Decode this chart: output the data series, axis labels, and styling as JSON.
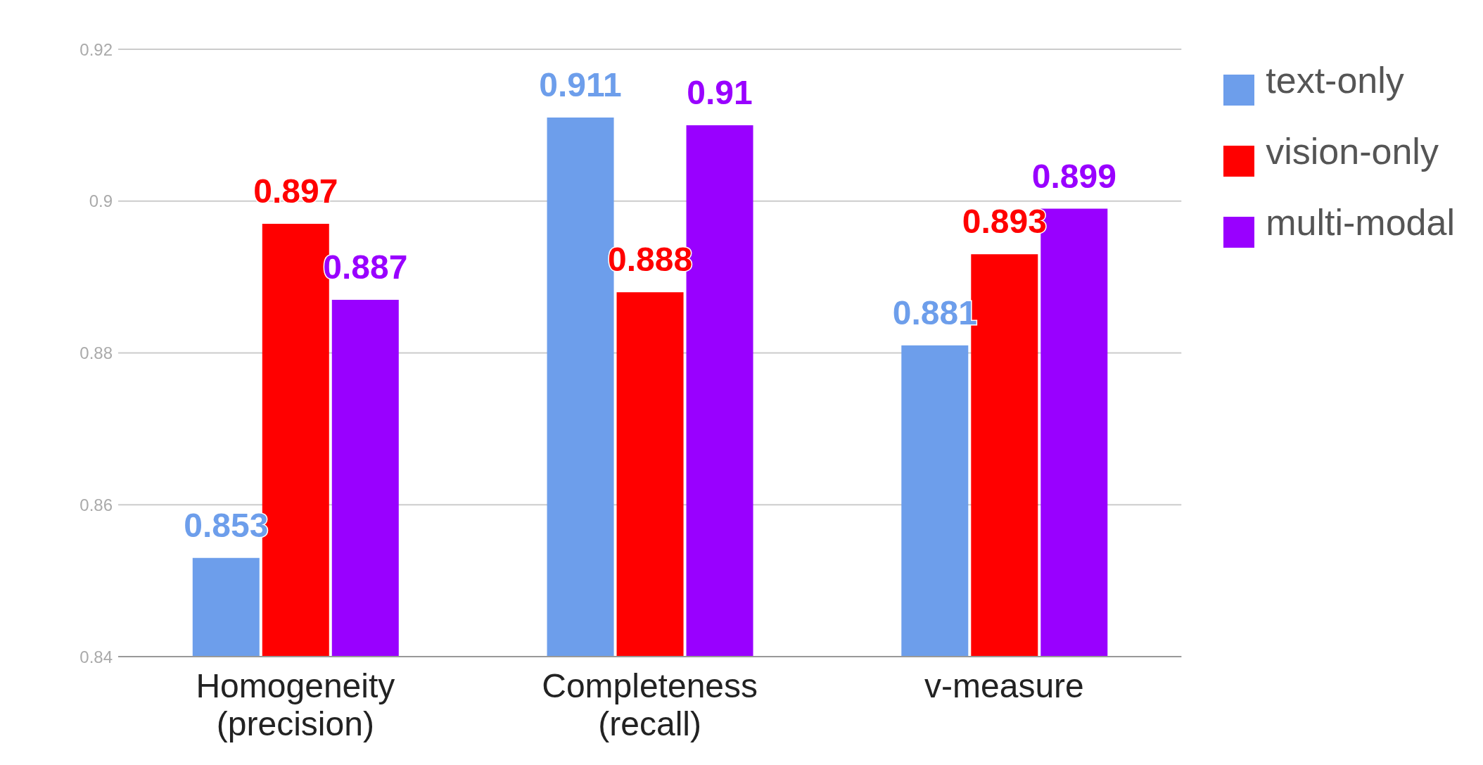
{
  "chart_data": {
    "type": "bar",
    "categories": [
      "Homogeneity (precision)",
      "Completeness (recall)",
      "v-measure"
    ],
    "series": [
      {
        "name": "text-only",
        "color": "#6d9eeb",
        "values": [
          0.853,
          0.911,
          0.881
        ]
      },
      {
        "name": "vision-only",
        "color": "#ff0000",
        "values": [
          0.897,
          0.888,
          0.893
        ]
      },
      {
        "name": "multi-modal",
        "color": "#9900ff",
        "values": [
          0.887,
          0.91,
          0.899
        ]
      }
    ],
    "ylim": [
      0.84,
      0.92
    ],
    "yticks": [
      0.84,
      0.86,
      0.88,
      0.9,
      0.92
    ],
    "grid": "y",
    "legend": "right",
    "data_labels": true
  }
}
